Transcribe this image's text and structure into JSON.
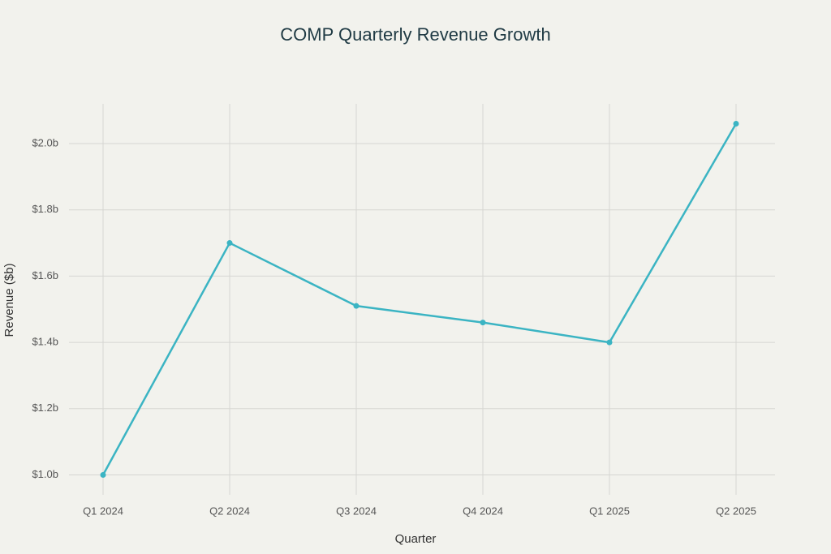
{
  "chart_data": {
    "type": "line",
    "title": "COMP Quarterly Revenue Growth",
    "x_label": "Quarter",
    "y_label": "Revenue ($b)",
    "categories": [
      "Q1 2024",
      "Q2 2024",
      "Q3 2024",
      "Q4 2024",
      "Q1 2025",
      "Q2 2025"
    ],
    "values": [
      1.0,
      1.7,
      1.51,
      1.46,
      1.4,
      2.06
    ],
    "color": "#3bb4c3",
    "ylim": [
      0.94,
      2.12
    ],
    "yticks": [
      {
        "value": 1.0,
        "label": "$1.0b"
      },
      {
        "value": 1.2,
        "label": "$1.2b"
      },
      {
        "value": 1.4,
        "label": "$1.4b"
      },
      {
        "value": 1.6,
        "label": "$1.6b"
      },
      {
        "value": 1.8,
        "label": "$1.8b"
      },
      {
        "value": 2.0,
        "label": "$2.0b"
      }
    ],
    "grid": true
  }
}
